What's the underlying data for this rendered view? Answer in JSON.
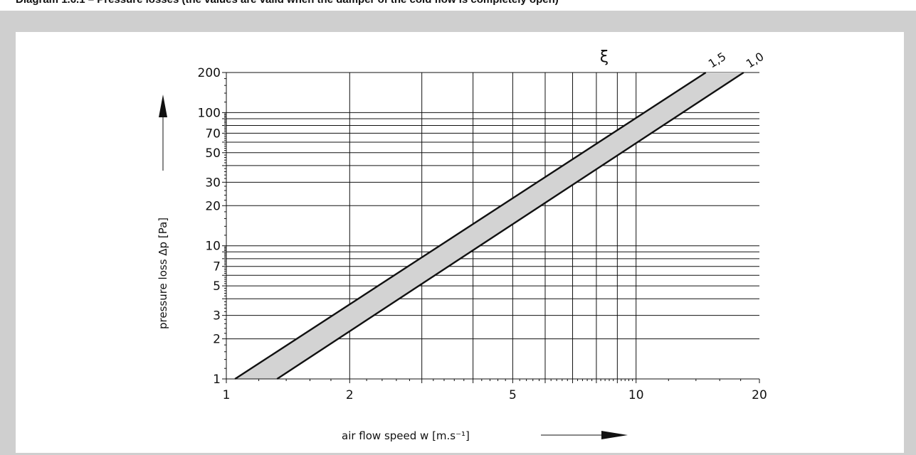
{
  "caption": "Diagram 1.6.1 – Pressure losses (the values are valid when the damper of the cold flow is completely open)",
  "colors": {
    "background_panel": "#cfcfcf",
    "band_fill": "#d3d3d3",
    "lines": "#111111"
  },
  "chart_data": {
    "type": "line",
    "title": "",
    "xlabel": "air flow speed w [m.s⁻¹]",
    "ylabel": "pressure loss Δp [Pa]",
    "xscale": "log",
    "yscale": "log",
    "xlim": [
      1,
      20
    ],
    "ylim": [
      1,
      200
    ],
    "xticks": [
      1,
      2,
      5,
      10,
      20
    ],
    "xtick_labels": [
      "1",
      "2",
      "5",
      "10",
      "20"
    ],
    "yticks": [
      1,
      2,
      3,
      5,
      7,
      10,
      20,
      30,
      50,
      70,
      100,
      200
    ],
    "ytick_labels": [
      "1",
      "2",
      "3",
      "5",
      "7",
      "10",
      "20",
      "30",
      "50",
      "70",
      "100",
      "200"
    ],
    "grid": true,
    "param_symbol": "ξ",
    "series": [
      {
        "name": "1,5",
        "x": [
          1.05,
          14.8
        ],
        "y": [
          1,
          200
        ]
      },
      {
        "name": "1,0",
        "x": [
          1.33,
          18.3
        ],
        "y": [
          1,
          200
        ]
      }
    ],
    "band_between_series": true
  }
}
